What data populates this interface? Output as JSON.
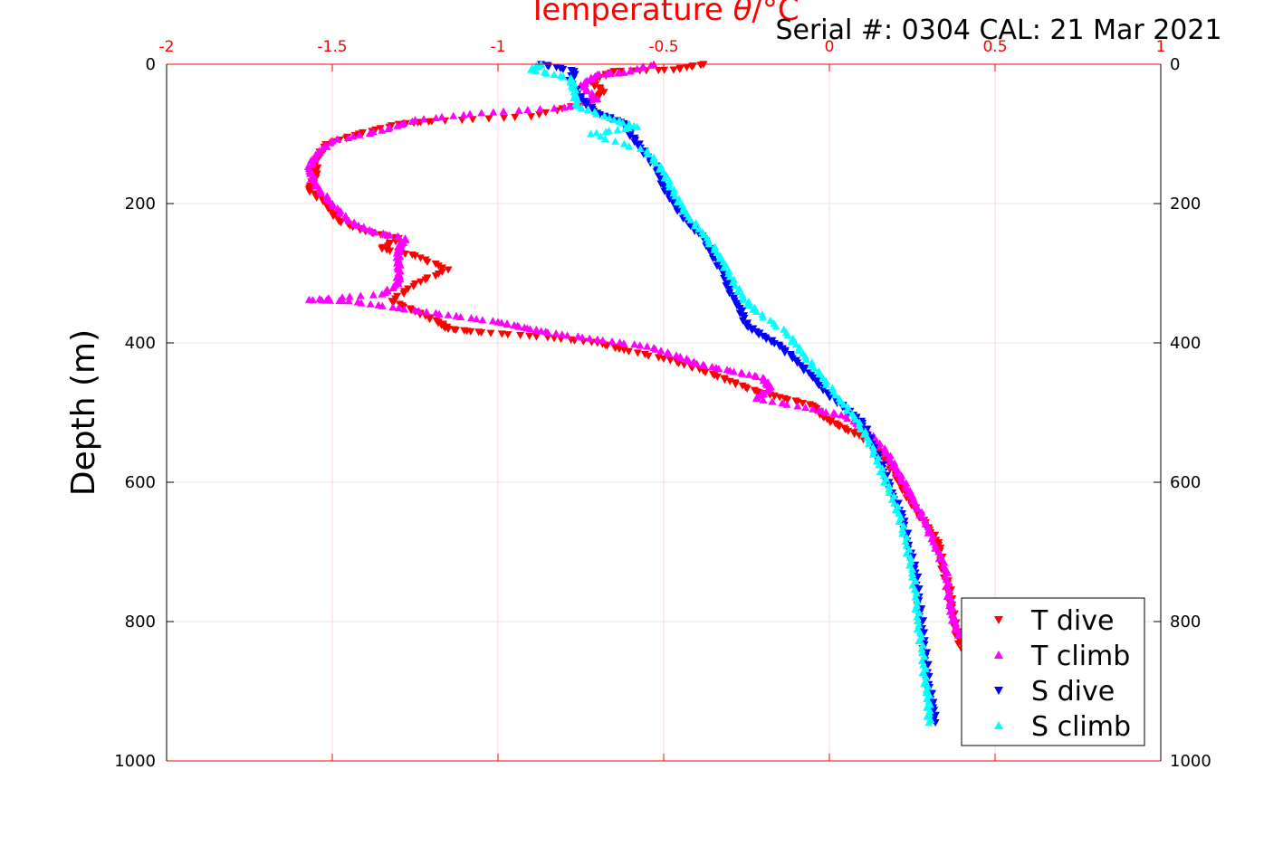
{
  "chart_data": {
    "type": "scatter",
    "title": "Temperature θ/°C",
    "annotation": "Serial #: 0304  CAL: 21 Mar 2021",
    "ylabel": "Depth (m)",
    "xlabel": "",
    "xlim": [
      -2,
      1
    ],
    "ylim": [
      0,
      1000
    ],
    "y_reversed": true,
    "x_axis_position": "top",
    "grid": true,
    "legend_position": "bottom-right",
    "x_ticks": [
      "-2",
      "-1.5",
      "-1",
      "-0.5",
      "0",
      "0.5",
      "1"
    ],
    "y_ticks": [
      "0",
      "200",
      "400",
      "600",
      "800",
      "1000"
    ],
    "colors": {
      "title": "#ff0000",
      "top_axis": "#ff0000",
      "grid": "#e6e6e6"
    },
    "series": [
      {
        "name": "T dive",
        "color": "#ff0000",
        "marker": "triangle-down",
        "points": [
          [
            -0.38,
            0
          ],
          [
            -0.47,
            8
          ],
          [
            -0.65,
            10
          ],
          [
            -0.72,
            25
          ],
          [
            -0.68,
            40
          ],
          [
            -0.73,
            55
          ],
          [
            -0.9,
            75
          ],
          [
            -1.2,
            82
          ],
          [
            -1.3,
            86
          ],
          [
            -1.42,
            100
          ],
          [
            -1.52,
            115
          ],
          [
            -1.55,
            140
          ],
          [
            -1.55,
            160
          ],
          [
            -1.57,
            180
          ],
          [
            -1.52,
            200
          ],
          [
            -1.48,
            225
          ],
          [
            -1.4,
            240
          ],
          [
            -1.3,
            250
          ],
          [
            -1.35,
            265
          ],
          [
            -1.25,
            275
          ],
          [
            -1.15,
            295
          ],
          [
            -1.25,
            315
          ],
          [
            -1.32,
            340
          ],
          [
            -1.25,
            355
          ],
          [
            -1.18,
            370
          ],
          [
            -1.15,
            380
          ],
          [
            -1.05,
            385
          ],
          [
            -0.85,
            392
          ],
          [
            -0.7,
            400
          ],
          [
            -0.62,
            410
          ],
          [
            -0.48,
            425
          ],
          [
            -0.38,
            440
          ],
          [
            -0.3,
            455
          ],
          [
            -0.22,
            470
          ],
          [
            -0.15,
            478
          ],
          [
            -0.05,
            490
          ],
          [
            -0.02,
            505
          ],
          [
            0.03,
            520
          ],
          [
            0.1,
            535
          ],
          [
            0.16,
            560
          ],
          [
            0.2,
            590
          ],
          [
            0.23,
            615
          ],
          [
            0.26,
            640
          ],
          [
            0.3,
            665
          ],
          [
            0.33,
            690
          ],
          [
            0.34,
            720
          ],
          [
            0.36,
            750
          ],
          [
            0.37,
            780
          ],
          [
            0.38,
            810
          ],
          [
            0.4,
            840
          ]
        ]
      },
      {
        "name": "T climb",
        "color": "#ff00ff",
        "marker": "triangle-up",
        "points": [
          [
            -0.53,
            0
          ],
          [
            -0.62,
            12
          ],
          [
            -0.7,
            15
          ],
          [
            -0.75,
            30
          ],
          [
            -0.7,
            50
          ],
          [
            -0.8,
            62
          ],
          [
            -1.05,
            70
          ],
          [
            -1.25,
            80
          ],
          [
            -1.35,
            95
          ],
          [
            -1.5,
            110
          ],
          [
            -1.55,
            130
          ],
          [
            -1.57,
            150
          ],
          [
            -1.55,
            175
          ],
          [
            -1.5,
            200
          ],
          [
            -1.45,
            225
          ],
          [
            -1.38,
            240
          ],
          [
            -1.28,
            250
          ],
          [
            -1.3,
            265
          ],
          [
            -1.3,
            280
          ],
          [
            -1.3,
            300
          ],
          [
            -1.3,
            315
          ],
          [
            -1.35,
            330
          ],
          [
            -1.57,
            338
          ],
          [
            -1.45,
            340
          ],
          [
            -1.3,
            350
          ],
          [
            -1.15,
            360
          ],
          [
            -1.0,
            370
          ],
          [
            -0.92,
            378
          ],
          [
            -0.85,
            385
          ],
          [
            -0.7,
            395
          ],
          [
            -0.55,
            405
          ],
          [
            -0.45,
            420
          ],
          [
            -0.4,
            430
          ],
          [
            -0.3,
            440
          ],
          [
            -0.2,
            450
          ],
          [
            -0.18,
            465
          ],
          [
            -0.22,
            480
          ],
          [
            -0.05,
            495
          ],
          [
            0.05,
            505
          ],
          [
            0.12,
            530
          ],
          [
            0.17,
            555
          ],
          [
            0.2,
            580
          ],
          [
            0.23,
            605
          ],
          [
            0.26,
            630
          ],
          [
            0.29,
            660
          ],
          [
            0.32,
            690
          ],
          [
            0.35,
            725
          ],
          [
            0.36,
            760
          ],
          [
            0.37,
            790
          ],
          [
            0.39,
            820
          ]
        ]
      },
      {
        "name": "S dive",
        "color": "#0000ff",
        "marker": "triangle-down",
        "points": [
          [
            -0.87,
            0
          ],
          [
            -0.77,
            10
          ],
          [
            -0.78,
            25
          ],
          [
            -0.75,
            50
          ],
          [
            -0.7,
            70
          ],
          [
            -0.62,
            85
          ],
          [
            -0.6,
            100
          ],
          [
            -0.57,
            120
          ],
          [
            -0.52,
            150
          ],
          [
            -0.5,
            175
          ],
          [
            -0.47,
            200
          ],
          [
            -0.43,
            225
          ],
          [
            -0.38,
            250
          ],
          [
            -0.35,
            275
          ],
          [
            -0.32,
            300
          ],
          [
            -0.3,
            325
          ],
          [
            -0.27,
            350
          ],
          [
            -0.25,
            375
          ],
          [
            -0.2,
            390
          ],
          [
            -0.15,
            405
          ],
          [
            -0.1,
            425
          ],
          [
            -0.05,
            450
          ],
          [
            0.0,
            475
          ],
          [
            0.05,
            495
          ],
          [
            0.1,
            515
          ],
          [
            0.13,
            545
          ],
          [
            0.16,
            580
          ],
          [
            0.19,
            615
          ],
          [
            0.22,
            650
          ],
          [
            0.24,
            690
          ],
          [
            0.26,
            730
          ],
          [
            0.27,
            770
          ],
          [
            0.28,
            810
          ],
          [
            0.29,
            850
          ],
          [
            0.3,
            890
          ],
          [
            0.31,
            920
          ],
          [
            0.32,
            945
          ]
        ]
      },
      {
        "name": "S climb",
        "color": "#00ffff",
        "marker": "triangle-up",
        "points": [
          [
            -0.87,
            0
          ],
          [
            -0.9,
            8
          ],
          [
            -0.78,
            20
          ],
          [
            -0.77,
            40
          ],
          [
            -0.76,
            60
          ],
          [
            -0.65,
            80
          ],
          [
            -0.58,
            90
          ],
          [
            -0.72,
            100
          ],
          [
            -0.55,
            125
          ],
          [
            -0.5,
            155
          ],
          [
            -0.47,
            185
          ],
          [
            -0.43,
            215
          ],
          [
            -0.38,
            245
          ],
          [
            -0.33,
            275
          ],
          [
            -0.3,
            305
          ],
          [
            -0.26,
            335
          ],
          [
            -0.22,
            355
          ],
          [
            -0.13,
            385
          ],
          [
            -0.08,
            415
          ],
          [
            -0.03,
            445
          ],
          [
            0.03,
            480
          ],
          [
            0.08,
            510
          ],
          [
            0.12,
            540
          ],
          [
            0.15,
            575
          ],
          [
            0.18,
            610
          ],
          [
            0.21,
            645
          ],
          [
            0.23,
            685
          ],
          [
            0.25,
            725
          ],
          [
            0.26,
            765
          ],
          [
            0.27,
            805
          ],
          [
            0.28,
            845
          ],
          [
            0.29,
            885
          ],
          [
            0.3,
            915
          ],
          [
            0.3,
            945
          ]
        ]
      }
    ]
  }
}
